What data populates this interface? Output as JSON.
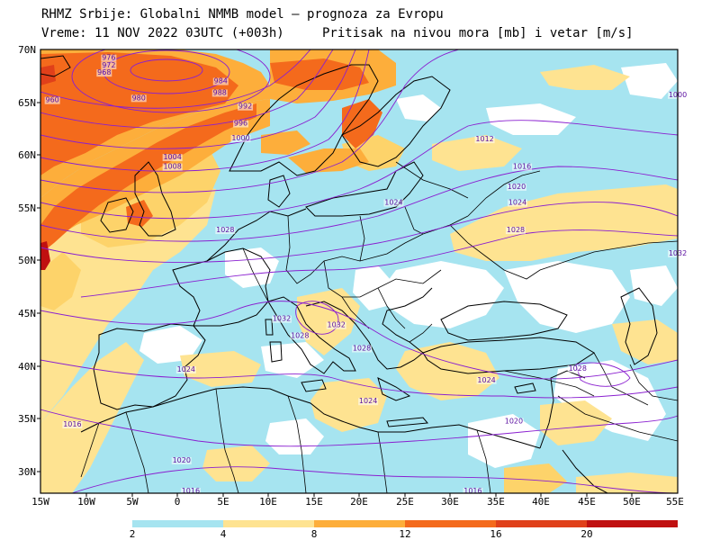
{
  "header": {
    "line1": "RHMZ Srbije: Globalni NMMB model — prognoza za Evropu",
    "line2_left": "Vreme: 11 NOV 2022 03UTC (+003h)",
    "line2_right": "Pritisak na nivou mora [mb] i vetar [m/s]"
  },
  "axes": {
    "lat_labels": [
      "70N",
      "65N",
      "60N",
      "55N",
      "50N",
      "45N",
      "40N",
      "35N",
      "30N"
    ],
    "lon_labels": [
      "15W",
      "10W",
      "5W",
      "0",
      "5E",
      "10E",
      "15E",
      "20E",
      "25E",
      "30E",
      "35E",
      "40E",
      "45E",
      "50E",
      "55E"
    ]
  },
  "legend": {
    "colors": [
      "#a6e4f0",
      "#fee391",
      "#fdd36a",
      "#fdae3b",
      "#f46a1c",
      "#e0401a",
      "#c01010"
    ],
    "labels": [
      "2",
      "4",
      "8",
      "12",
      "16",
      "20"
    ]
  },
  "isobar_labels": [
    {
      "text": "976",
      "lat": 69.0,
      "lon": -7.5
    },
    {
      "text": "972",
      "lat": 68.3,
      "lon": -7.5
    },
    {
      "text": "968",
      "lat": 67.6,
      "lon": -8.0
    },
    {
      "text": "980",
      "lat": 65.2,
      "lon": -4.2
    },
    {
      "text": "960",
      "lat": 65.0,
      "lon": -13.7
    },
    {
      "text": "984",
      "lat": 66.8,
      "lon": 4.8
    },
    {
      "text": "988",
      "lat": 65.7,
      "lon": 4.7
    },
    {
      "text": "992",
      "lat": 64.4,
      "lon": 7.5
    },
    {
      "text": "996",
      "lat": 62.8,
      "lon": 7.0
    },
    {
      "text": "1000",
      "lat": 61.4,
      "lon": 7.0
    },
    {
      "text": "1004",
      "lat": 59.6,
      "lon": -0.5
    },
    {
      "text": "1008",
      "lat": 58.7,
      "lon": -0.5
    },
    {
      "text": "1012",
      "lat": 61.3,
      "lon": 33.8
    },
    {
      "text": "1016",
      "lat": 58.7,
      "lon": 37.9
    },
    {
      "text": "1020",
      "lat": 56.8,
      "lon": 37.3
    },
    {
      "text": "1024",
      "lat": 55.3,
      "lon": 37.4
    },
    {
      "text": "1024",
      "lat": 55.3,
      "lon": 23.8
    },
    {
      "text": "1028",
      "lat": 52.7,
      "lon": 5.3
    },
    {
      "text": "1028",
      "lat": 52.7,
      "lon": 37.2
    },
    {
      "text": "1032",
      "lat": 44.3,
      "lon": 11.5
    },
    {
      "text": "1032",
      "lat": 43.7,
      "lon": 17.5
    },
    {
      "text": "1028",
      "lat": 42.7,
      "lon": 13.5
    },
    {
      "text": "1028",
      "lat": 41.5,
      "lon": 20.3
    },
    {
      "text": "1024",
      "lat": 39.5,
      "lon": 1.0
    },
    {
      "text": "1024",
      "lat": 36.5,
      "lon": 21.0
    },
    {
      "text": "1024",
      "lat": 38.5,
      "lon": 34.0
    },
    {
      "text": "1028",
      "lat": 39.6,
      "lon": 44.0
    },
    {
      "text": "1016",
      "lat": 34.3,
      "lon": -11.5
    },
    {
      "text": "1020",
      "lat": 30.9,
      "lon": 0.5
    },
    {
      "text": "1020",
      "lat": 34.6,
      "lon": 37.0
    },
    {
      "text": "1016",
      "lat": 28.0,
      "lon": 32.5
    },
    {
      "text": "1016",
      "lat": 28.0,
      "lon": 1.5
    },
    {
      "text": "1000",
      "lat": 65.5,
      "lon": 55.0
    },
    {
      "text": "1032",
      "lat": 50.5,
      "lon": 55.0
    }
  ]
}
